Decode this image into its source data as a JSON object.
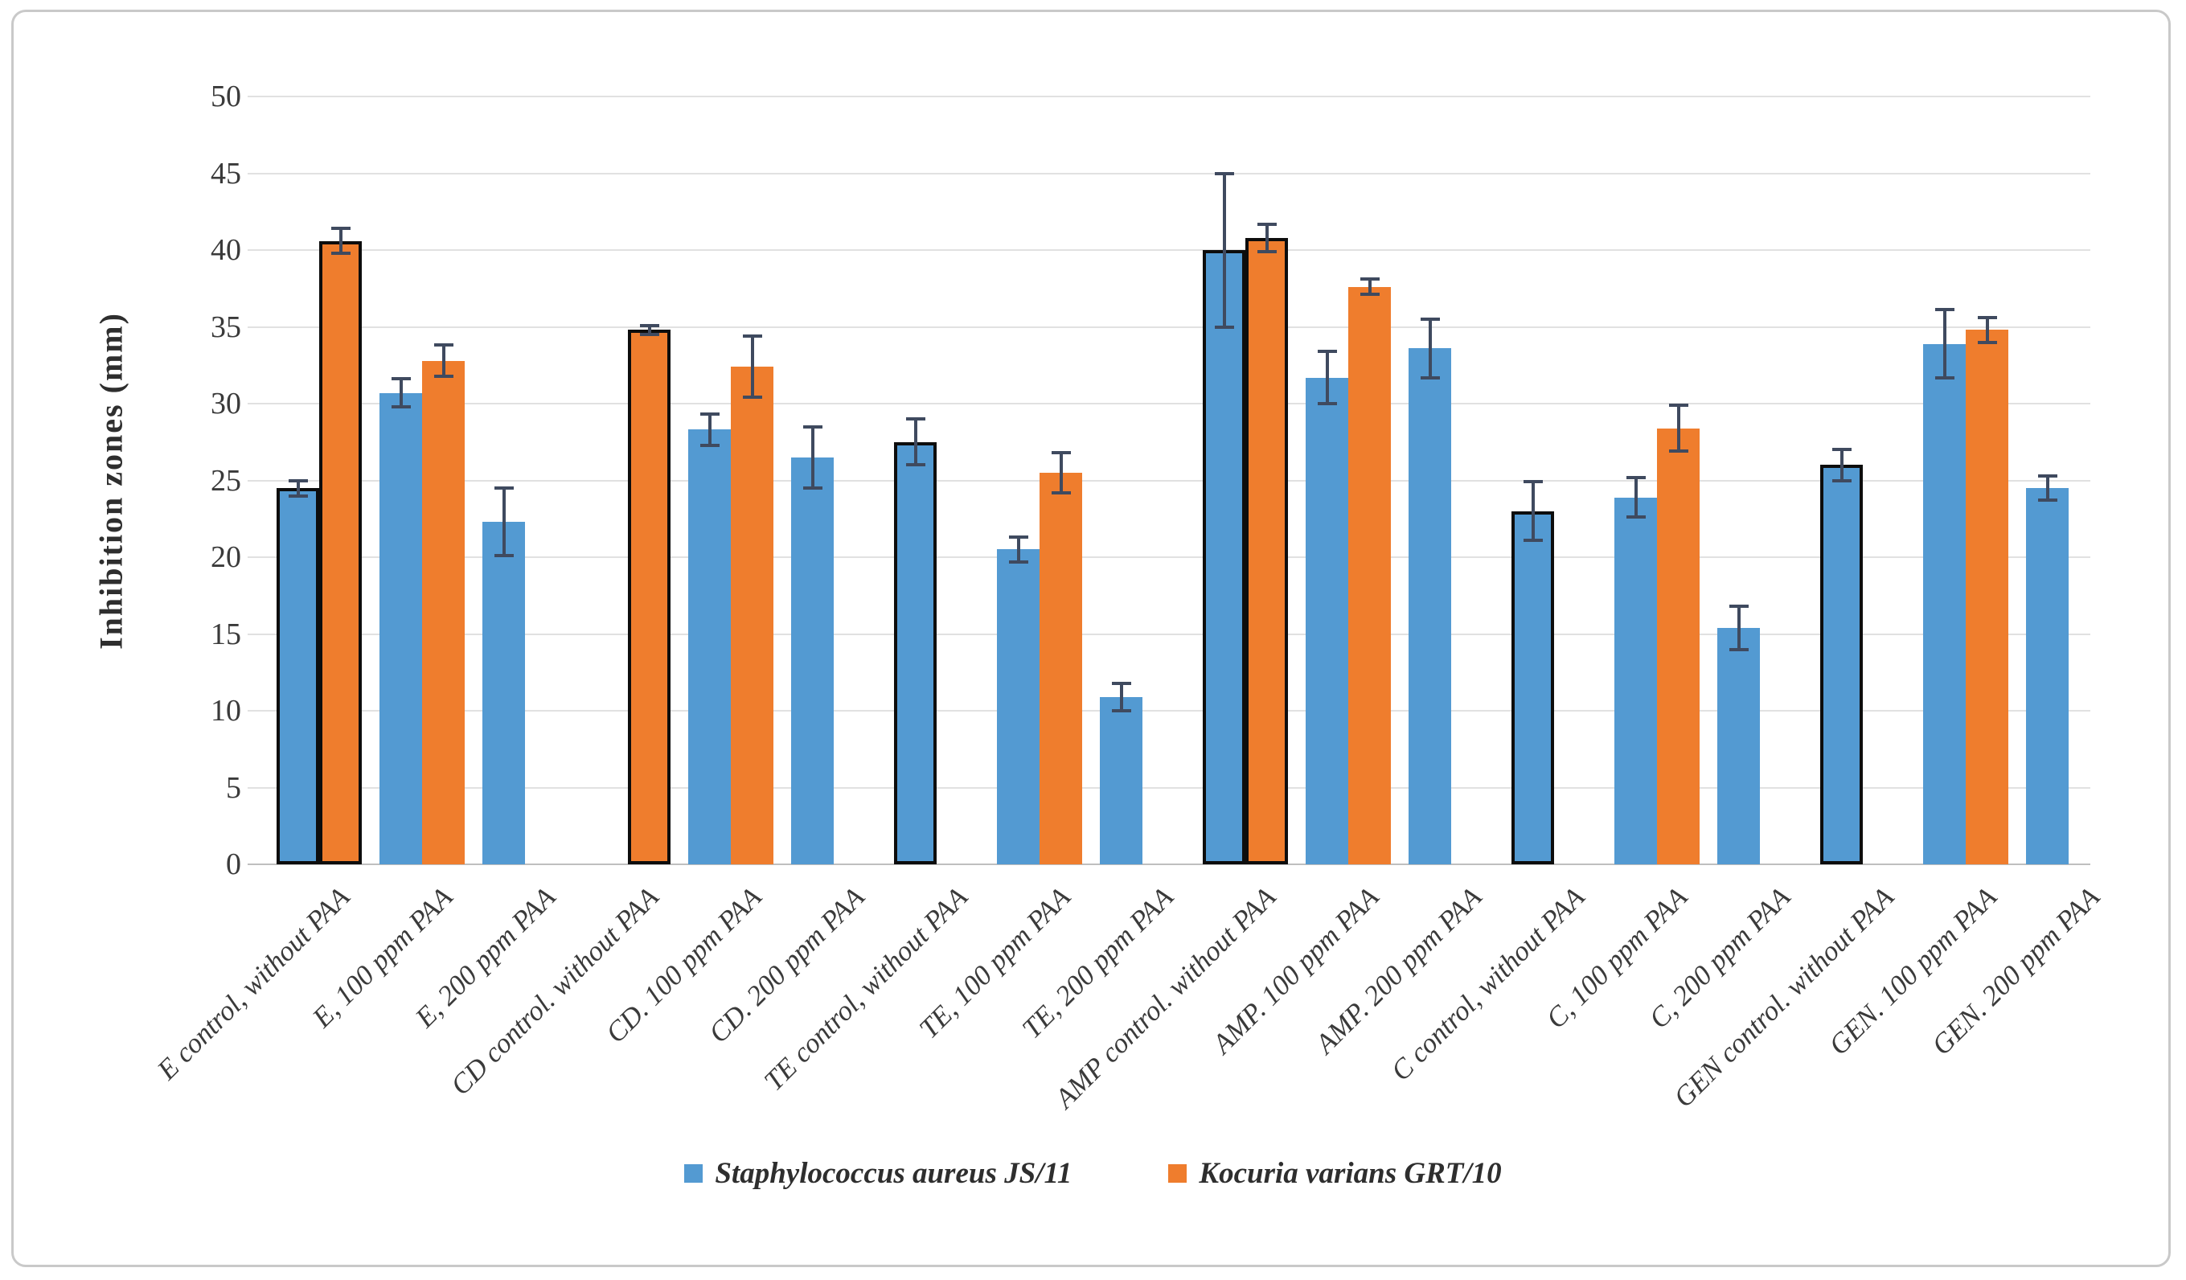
{
  "colors": {
    "series_blue": "#539ad2",
    "series_orange": "#ef7d2d",
    "error_bar": "#3f4a5f",
    "gridline": "#e1e1e1",
    "axis_line": "#bfbfbf",
    "control_outline": "#0d0d0d",
    "text": "#3a3a3a",
    "figure_border": "#c9c9c9"
  },
  "chart_data": {
    "type": "bar",
    "title": "",
    "xlabel": "",
    "ylabel": "Inhibition zones (mm)",
    "ylim": [
      0,
      50
    ],
    "ytick_step": 5,
    "yticks": [
      0,
      5,
      10,
      15,
      20,
      25,
      30,
      35,
      40,
      45,
      50
    ],
    "grid": true,
    "legend_position": "bottom-center",
    "error_bars": true,
    "series": [
      {
        "name": "Staphylococcus aureus JS/11",
        "color_key": "series_blue"
      },
      {
        "name": "Kocuria varians GRT/10",
        "color_key": "series_orange"
      }
    ],
    "categories": [
      "E control, without PAA",
      "E, 100 ppm PAA",
      "E, 200 ppm PAA",
      "CD control. without PAA",
      "CD. 100 ppm PAA",
      "CD. 200 ppm PAA",
      "TE control, without PAA",
      "TE, 100 ppm PAA",
      "TE, 200 ppm PAA",
      "AMP control. without PAA",
      "AMP. 100 ppm PAA",
      "AMP. 200 ppm PAA",
      "C control, without PAA",
      "C, 100 ppm PAA",
      "C, 200 ppm PAA",
      "GEN control. without PAA",
      "GEN. 100 ppm PAA",
      "GEN. 200 ppm PAA"
    ],
    "groups": [
      {
        "label": "E control, without PAA",
        "outlined": true,
        "bars": [
          {
            "series_index": 0,
            "value": 24.5,
            "error": 0.5
          },
          {
            "series_index": 1,
            "value": 40.6,
            "error": 0.8
          }
        ]
      },
      {
        "label": "E, 100 ppm PAA",
        "outlined": false,
        "bars": [
          {
            "series_index": 0,
            "value": 30.7,
            "error": 0.9
          },
          {
            "series_index": 1,
            "value": 32.8,
            "error": 1.0
          }
        ]
      },
      {
        "label": "E, 200 ppm PAA",
        "outlined": false,
        "bars": [
          {
            "series_index": 0,
            "value": 22.3,
            "error": 2.2
          }
        ]
      },
      {
        "label": "CD control. without PAA",
        "outlined": true,
        "bars": [
          {
            "series_index": 1,
            "value": 34.8,
            "error": 0.3
          }
        ]
      },
      {
        "label": "CD. 100 ppm PAA",
        "outlined": false,
        "bars": [
          {
            "series_index": 0,
            "value": 28.3,
            "error": 1.0
          },
          {
            "series_index": 1,
            "value": 32.4,
            "error": 2.0
          }
        ]
      },
      {
        "label": "CD. 200 ppm PAA",
        "outlined": false,
        "bars": [
          {
            "series_index": 0,
            "value": 26.5,
            "error": 2.0
          }
        ]
      },
      {
        "label": "TE control, without PAA",
        "outlined": true,
        "bars": [
          {
            "series_index": 0,
            "value": 27.5,
            "error": 1.5
          }
        ]
      },
      {
        "label": "TE, 100 ppm PAA",
        "outlined": false,
        "bars": [
          {
            "series_index": 0,
            "value": 20.5,
            "error": 0.8
          },
          {
            "series_index": 1,
            "value": 25.5,
            "error": 1.3
          }
        ]
      },
      {
        "label": "TE, 200 ppm PAA",
        "outlined": false,
        "bars": [
          {
            "series_index": 0,
            "value": 10.9,
            "error": 0.9
          }
        ]
      },
      {
        "label": "AMP control. without PAA",
        "outlined": true,
        "bars": [
          {
            "series_index": 0,
            "value": 40.0,
            "error": 5.0
          },
          {
            "series_index": 1,
            "value": 40.8,
            "error": 0.9
          }
        ]
      },
      {
        "label": "AMP. 100 ppm PAA",
        "outlined": false,
        "bars": [
          {
            "series_index": 0,
            "value": 31.7,
            "error": 1.7
          },
          {
            "series_index": 1,
            "value": 37.6,
            "error": 0.5
          }
        ]
      },
      {
        "label": "AMP. 200 ppm PAA",
        "outlined": false,
        "bars": [
          {
            "series_index": 0,
            "value": 33.6,
            "error": 1.9
          }
        ]
      },
      {
        "label": "C control, without PAA",
        "outlined": true,
        "bars": [
          {
            "series_index": 0,
            "value": 23.0,
            "error": 1.9
          }
        ]
      },
      {
        "label": "C, 100 ppm PAA",
        "outlined": false,
        "bars": [
          {
            "series_index": 0,
            "value": 23.9,
            "error": 1.3
          },
          {
            "series_index": 1,
            "value": 28.4,
            "error": 1.5
          }
        ]
      },
      {
        "label": "C, 200 ppm PAA",
        "outlined": false,
        "bars": [
          {
            "series_index": 0,
            "value": 15.4,
            "error": 1.4
          }
        ]
      },
      {
        "label": "GEN control. without PAA",
        "outlined": true,
        "bars": [
          {
            "series_index": 0,
            "value": 26.0,
            "error": 1.0
          }
        ]
      },
      {
        "label": "GEN. 100 ppm PAA",
        "outlined": false,
        "bars": [
          {
            "series_index": 0,
            "value": 33.9,
            "error": 2.2
          },
          {
            "series_index": 1,
            "value": 34.8,
            "error": 0.8
          }
        ]
      },
      {
        "label": "GEN. 200 ppm PAA",
        "outlined": false,
        "bars": [
          {
            "series_index": 0,
            "value": 24.5,
            "error": 0.8
          }
        ]
      }
    ]
  }
}
